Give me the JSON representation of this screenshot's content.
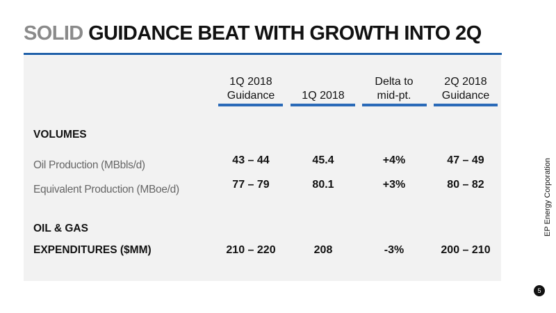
{
  "slide": {
    "title_accent": "SOLID",
    "title_rest": "GUIDANCE BEAT WITH GROWTH INTO 2Q",
    "side_company": "EP Energy Corporation",
    "page_number": "5"
  },
  "table": {
    "columns": [
      {
        "line1": "1Q 2018",
        "line2": "Guidance"
      },
      {
        "line1": "",
        "line2": "1Q 2018"
      },
      {
        "line1": "Delta to",
        "line2": "mid-pt."
      },
      {
        "line1": "2Q 2018",
        "line2": "Guidance"
      }
    ],
    "volumes_header": "VOLUMES",
    "rows": [
      {
        "label": "Oil Production (MBbls/d)",
        "values": [
          "43 – 44",
          "45.4",
          "+4%",
          "47 – 49"
        ]
      },
      {
        "label": "Equivalent Production (MBoe/d)",
        "values": [
          "77 – 79",
          "80.1",
          "+3%",
          "80 – 82"
        ]
      }
    ],
    "oilgas_header": "OIL & GAS",
    "expenditures": {
      "label": "EXPENDITURES ($MM)",
      "values": [
        "210 – 220",
        "208",
        "-3%",
        "200 – 210"
      ]
    }
  }
}
